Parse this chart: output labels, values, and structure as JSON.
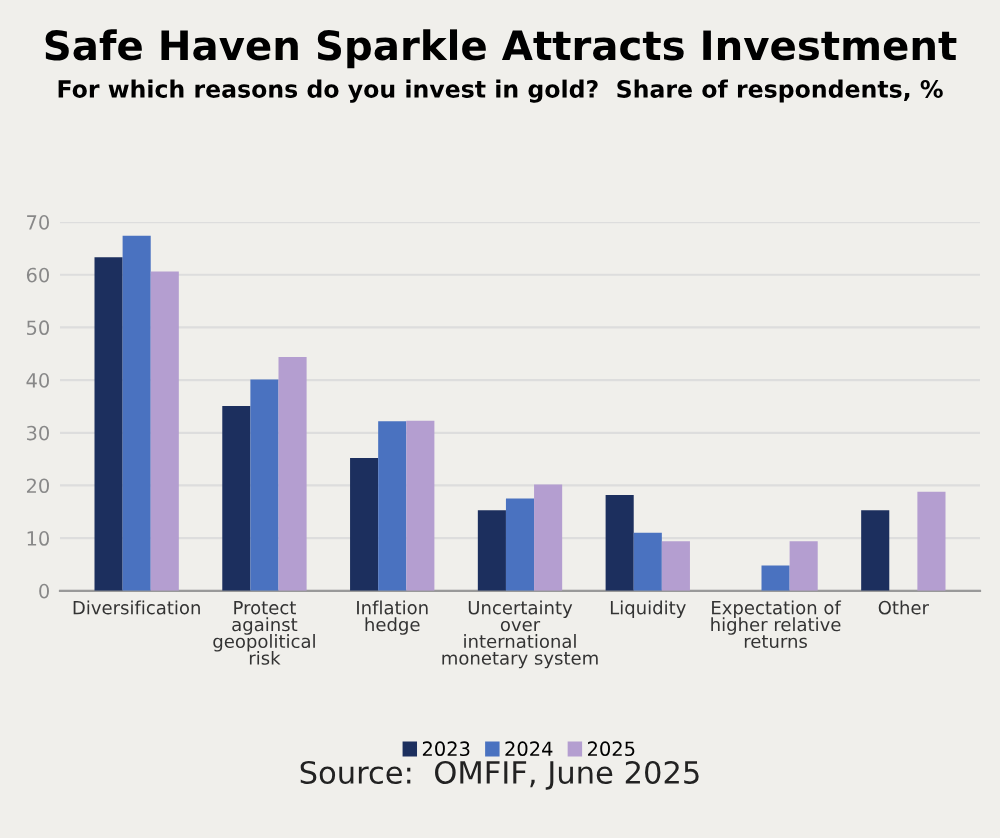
{
  "chart_data": {
    "type": "bar",
    "title": "Safe Haven Sparkle Attracts Investment",
    "subtitle": "For which reasons do you invest in gold?  Share of respondents, %",
    "categories": [
      "Diversification",
      "Protect\nagainst\ngeopolitical\nrisk",
      "Inflation\nhedge",
      "Uncertainty\nover\ninternational\nmonetary system",
      "Liquidity",
      "Expectation of\nhigher relative\nreturns",
      "Other"
    ],
    "series": [
      {
        "name": "2023",
        "color": "#1c2f5e",
        "values": [
          63.3,
          35.1,
          25.2,
          15.3,
          18.2,
          null,
          15.3
        ]
      },
      {
        "name": "2024",
        "color": "#4a72c0",
        "values": [
          67.4,
          40.1,
          32.2,
          17.5,
          11.0,
          4.8,
          null
        ]
      },
      {
        "name": "2025",
        "color": "#b49ed0",
        "values": [
          60.6,
          44.4,
          32.3,
          20.2,
          9.4,
          9.4,
          18.8
        ]
      }
    ],
    "ylim": [
      0,
      70
    ],
    "yticks": [
      0,
      10,
      20,
      30,
      40,
      50,
      60,
      70
    ],
    "grid": "y",
    "legend": "bottom",
    "annotations": [
      "Source:  OMFIF, June 2025"
    ]
  }
}
